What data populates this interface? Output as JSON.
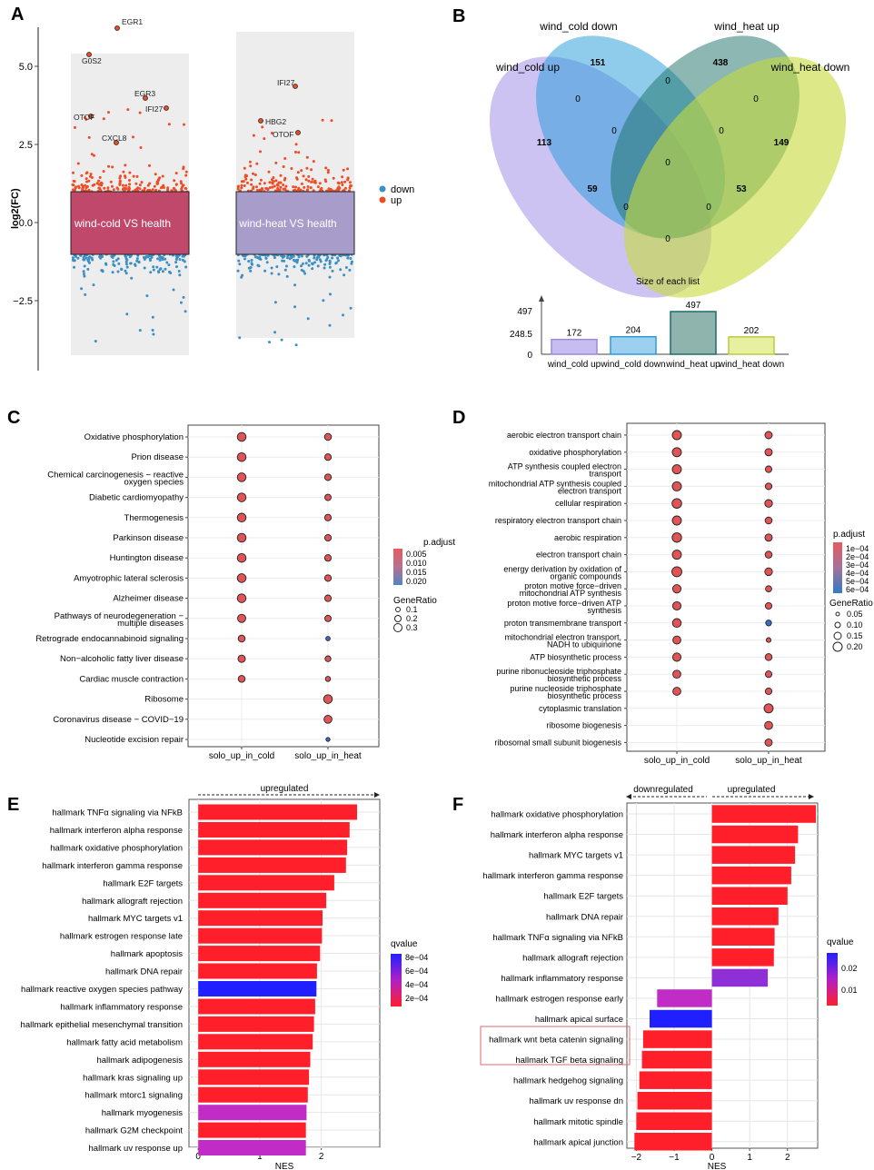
{
  "panel_labels": [
    "A",
    "B",
    "C",
    "D",
    "E",
    "F"
  ],
  "colors": {
    "up": "#ee4c24",
    "down": "#3a8fc7",
    "box_cold": "#c0486b",
    "box_heat": "#a89ccb",
    "bar_red": "#ff1f2a",
    "bar_blue": "#1f1fff",
    "bar_purple": "#c12cc7",
    "bar_purple2": "#8e2fd8",
    "panel_bg": "#ededed"
  },
  "panelA": {
    "ylabel": "log2(FC)",
    "yticks": [
      "5.0",
      "2.5",
      "0.0",
      "−2.5"
    ],
    "box_labels": [
      "wind-cold VS health",
      "wind-heat VS health"
    ],
    "legend": [
      "down",
      "up"
    ],
    "genes_cold": [
      "EGR1",
      "G0S2",
      "EGR3",
      "IFI27",
      "OTOF",
      "CXCL8"
    ],
    "genes_heat": [
      "IFI27",
      "HBG2",
      "OTOF"
    ]
  },
  "panelB": {
    "sets": [
      "wind_cold down",
      "wind_heat up",
      "wind_cold up",
      "wind_heat down"
    ],
    "counts": {
      "cold_down_only": "151",
      "heat_up_only": "438",
      "cold_up_only": "113",
      "heat_down_only": "149",
      "cold_up_heat_up": "59",
      "cold_down_heat_down": "53",
      "zero": "0"
    },
    "bar_title": "Size of each list",
    "bar_yticks": [
      "497",
      "248.5",
      "0"
    ],
    "bars": [
      {
        "label": "wind_cold up",
        "value": "172"
      },
      {
        "label": "wind_cold down",
        "value": "204"
      },
      {
        "label": "wind_heat up",
        "value": "497"
      },
      {
        "label": "wind_heat down",
        "value": "202"
      }
    ]
  },
  "panelC": {
    "terms": [
      "Oxidative phosphorylation",
      "Prion disease",
      "Chemical carcinogenesis − reactive oxygen species",
      "Diabetic cardiomyopathy",
      "Thermogenesis",
      "Parkinson disease",
      "Huntington disease",
      "Amyotrophic lateral sclerosis",
      "Alzheimer disease",
      "Pathways of neurodegeneration − multiple diseases",
      "Retrograde endocannabinoid signaling",
      "Non−alcoholic fatty liver disease",
      "Cardiac muscle contraction",
      "Ribosome",
      "Coronavirus disease − COVID−19",
      "Nucleotide excision repair"
    ],
    "xlabels": [
      "solo_up_in_cold",
      "solo_up_in_heat"
    ],
    "legend_padj_title": "p.adjust",
    "legend_padj": [
      "0.005",
      "0.010",
      "0.015",
      "0.020"
    ],
    "legend_gr_title": "GeneRatio",
    "legend_gr": [
      "0.1",
      "0.2",
      "0.3"
    ]
  },
  "panelD": {
    "terms": [
      "aerobic electron transport chain",
      "oxidative phosphorylation",
      "ATP synthesis coupled electron transport",
      "mitochondrial ATP synthesis coupled electron transport",
      "cellular respiration",
      "respiratory electron transport chain",
      "aerobic respiration",
      "electron transport chain",
      "energy derivation by oxidation of organic compounds",
      "proton motive force−driven mitochondrial ATP synthesis",
      "proton motive force−driven ATP synthesis",
      "proton transmembrane transport",
      "mitochondrial electron transport, NADH to ubiquinone",
      "ATP biosynthetic process",
      "purine ribonucleoside triphosphate biosynthetic process",
      "purine nucleoside triphosphate biosynthetic process",
      "cytoplasmic translation",
      "ribosome biogenesis",
      "ribosomal small subunit biogenesis"
    ],
    "xlabels": [
      "solo_up_in_cold",
      "solo_up_in_heat"
    ],
    "legend_padj_title": "p.adjust",
    "legend_padj": [
      "1e−04",
      "2e−04",
      "3e−04",
      "4e−04",
      "5e−04",
      "6e−04"
    ],
    "legend_gr_title": "GeneRatio",
    "legend_gr": [
      "0.05",
      "0.10",
      "0.15",
      "0.20"
    ]
  },
  "chart_data": [
    {
      "type": "bar",
      "title": "E",
      "header": "upregulated",
      "xlabel": "NES",
      "xticks": [
        "0",
        "1",
        "2"
      ],
      "xlim": [
        -0.15,
        2.95
      ],
      "legend_title": "qvalue",
      "legend_ticks": [
        "8e−04",
        "6e−04",
        "4e−04",
        "2e−04"
      ],
      "categories": [
        "hallmark TNFα signaling via NFkB",
        "hallmark interferon alpha response",
        "hallmark oxidative phosphorylation",
        "hallmark interferon gamma response",
        "hallmark E2F targets",
        "hallmark allograft rejection",
        "hallmark MYC targets v1",
        "hallmark estrogen response late",
        "hallmark apoptosis",
        "hallmark DNA repair",
        "hallmark reactive oxygen species pathway",
        "hallmark inflammatory response",
        "hallmark epithelial mesenchymal transition",
        "hallmark fatty acid metabolism",
        "hallmark adipogenesis",
        "hallmark kras signaling up",
        "hallmark mtorc1 signaling",
        "hallmark myogenesis",
        "hallmark G2M checkpoint",
        "hallmark uv response up"
      ],
      "values": [
        2.58,
        2.46,
        2.42,
        2.4,
        2.21,
        2.08,
        2.02,
        2.01,
        1.98,
        1.93,
        1.92,
        1.9,
        1.88,
        1.86,
        1.82,
        1.8,
        1.78,
        1.76,
        1.75,
        1.75
      ],
      "colors": [
        "#ff1f2a",
        "#ff1f2a",
        "#ff1f2a",
        "#ff1f2a",
        "#ff1f2a",
        "#ff1f2a",
        "#ff1f2a",
        "#ff1f2a",
        "#ff1f2a",
        "#ff1f2a",
        "#1f1fff",
        "#ff1f2a",
        "#ff1f2a",
        "#ff1f2a",
        "#ff1f2a",
        "#ff1f2a",
        "#ff1f2a",
        "#c12cc7",
        "#ff1f2a",
        "#c12cc7"
      ]
    },
    {
      "type": "bar",
      "title": "F",
      "header_down": "downregulated",
      "header_up": "upregulated",
      "xlabel": "NES",
      "xticks": [
        "−2",
        "−1",
        "0",
        "1",
        "2"
      ],
      "xlim": [
        -2.25,
        2.8
      ],
      "legend_title": "qvalue",
      "legend_ticks": [
        "0.02",
        "0.01"
      ],
      "categories": [
        "hallmark oxidative phosphorylation",
        "hallmark interferon alpha response",
        "hallmark MYC targets v1",
        "hallmark interferon gamma response",
        "hallmark E2F targets",
        "hallmark DNA repair",
        "hallmark TNFα signaling via NFkB",
        "hallmark allograft rejection",
        "hallmark inflammatory response",
        "hallmark estrogen response early",
        "hallmark apical surface",
        "hallmark wnt beta catenin signaling",
        "hallmark TGF beta signaling",
        "hallmark hedgehog signaling",
        "hallmark uv response dn",
        "hallmark mitotic spindle",
        "hallmark apical junction"
      ],
      "values": [
        2.75,
        2.28,
        2.2,
        2.1,
        2.0,
        1.76,
        1.66,
        1.64,
        1.48,
        -1.45,
        -1.65,
        -1.82,
        -1.85,
        -1.92,
        -1.97,
        -2.0,
        -2.05
      ],
      "colors": [
        "#ff1f2a",
        "#ff1f2a",
        "#ff1f2a",
        "#ff1f2a",
        "#ff1f2a",
        "#ff1f2a",
        "#ff1f2a",
        "#ff1f2a",
        "#8e2fd8",
        "#c12cc7",
        "#1f1fff",
        "#ff1f2a",
        "#ff1f2a",
        "#ff1f2a",
        "#ff1f2a",
        "#ff1f2a",
        "#ff1f2a"
      ],
      "highlighted": [
        "hallmark wnt beta catenin signaling",
        "hallmark TGF beta signaling"
      ]
    }
  ]
}
